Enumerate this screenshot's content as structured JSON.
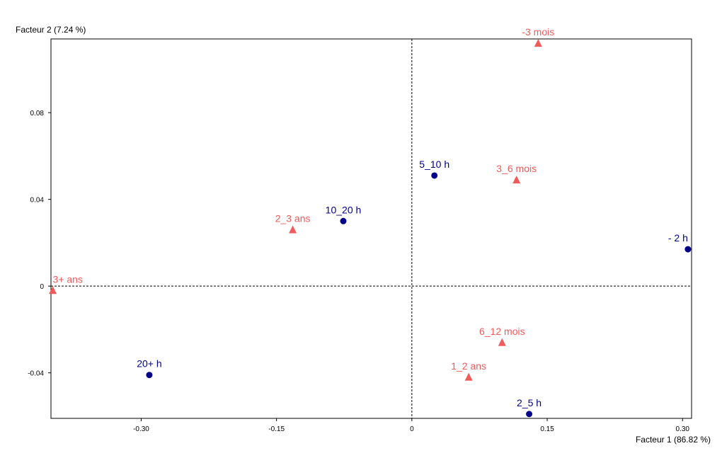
{
  "chart_data": {
    "type": "scatter",
    "title": "",
    "xlabel": "Facteur 1 (86.82 %)",
    "ylabel": "Facteur 2 (7.24 %)",
    "xlim": [
      -0.4,
      0.31
    ],
    "ylim": [
      -0.061,
      0.114
    ],
    "x_ticks": [
      {
        "value": -0.3,
        "label": "-0.30"
      },
      {
        "value": -0.15,
        "label": "-0.15"
      },
      {
        "value": 0,
        "label": "0"
      },
      {
        "value": 0.15,
        "label": "0.15"
      },
      {
        "value": 0.3,
        "label": "0.30"
      }
    ],
    "y_ticks": [
      {
        "value": 0.08,
        "label": "0.08"
      },
      {
        "value": 0.04,
        "label": "0.04"
      },
      {
        "value": 0,
        "label": "0"
      },
      {
        "value": -0.04,
        "label": "-0.04"
      }
    ],
    "grid": false,
    "reference_lines": {
      "x": 0,
      "y": 0,
      "style": "dotted"
    },
    "series": [
      {
        "marker": "circle",
        "color": "#00008b",
        "points": [
          {
            "label": "5_10 h",
            "x": 0.025,
            "y": 0.051
          },
          {
            "label": "10_20 h",
            "x": -0.076,
            "y": 0.03
          },
          {
            "label": "- 2 h",
            "x": 0.306,
            "y": 0.017
          },
          {
            "label": "20+ h",
            "x": -0.291,
            "y": -0.041
          },
          {
            "label": "2_5 h",
            "x": 0.13,
            "y": -0.059
          }
        ]
      },
      {
        "marker": "triangle",
        "color": "#f05a5a",
        "points": [
          {
            "label": "-3 mois",
            "x": 0.14,
            "y": 0.112
          },
          {
            "label": "3_6 mois",
            "x": 0.116,
            "y": 0.049
          },
          {
            "label": "2_3 ans",
            "x": -0.132,
            "y": 0.026
          },
          {
            "label": "3+ ans",
            "x": -0.398,
            "y": -0.002
          },
          {
            "label": "6_12 mois",
            "x": 0.1,
            "y": -0.026
          },
          {
            "label": "1_2 ans",
            "x": 0.063,
            "y": -0.042
          }
        ]
      }
    ]
  }
}
